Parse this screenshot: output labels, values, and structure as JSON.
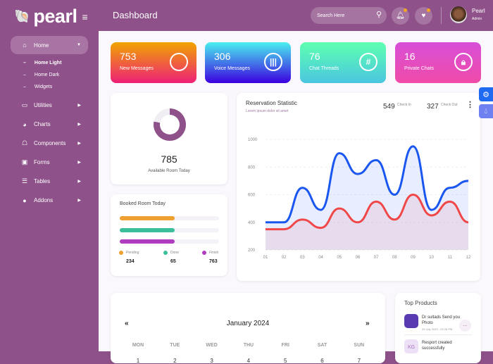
{
  "brand": {
    "name": "pearl"
  },
  "header": {
    "title": "Dashboard",
    "search_placeholder": "Search Here",
    "user_name": "Pearl",
    "user_role": "Admin"
  },
  "sidebar": {
    "items": [
      {
        "label": "Home",
        "icon": "home-icon",
        "active": true,
        "children": [
          "Home Light",
          "Home Dark",
          "Widgets"
        ]
      },
      {
        "label": "Utilities",
        "icon": "calendar-icon"
      },
      {
        "label": "Charts",
        "icon": "chart-icon"
      },
      {
        "label": "Components",
        "icon": "components-icon"
      },
      {
        "label": "Forms",
        "icon": "form-icon"
      },
      {
        "label": "Tables",
        "icon": "table-icon"
      },
      {
        "label": "Addons",
        "icon": "addon-icon"
      }
    ]
  },
  "stats": [
    {
      "value": "753",
      "label": "New Messages",
      "icon": "chat-bubble-icon",
      "gradient": [
        "#f0a500",
        "#ee1f78"
      ]
    },
    {
      "value": "306",
      "label": "Voice Messages",
      "icon": "voice-icon",
      "gradient": [
        "#4af0f0",
        "#3c00e0"
      ]
    },
    {
      "value": "76",
      "label": "Chat Threads",
      "icon": "hashtag-icon",
      "gradient": [
        "#5effb0",
        "#4ac6e0"
      ]
    },
    {
      "value": "16",
      "label": "Private Chats",
      "icon": "lock-chat-icon",
      "gradient": [
        "#d84fd8",
        "#f04ba8"
      ]
    }
  ],
  "room": {
    "value": "785",
    "label": "Available Room Today",
    "percent": 78
  },
  "booked": {
    "title": "Booked Room Today",
    "bars": [
      {
        "label": "Pending",
        "value": "234",
        "color": "#f0a030",
        "fill": 55
      },
      {
        "label": "Done",
        "value": "65",
        "color": "#3bbf9a",
        "fill": 55
      },
      {
        "label": "Finish",
        "value": "763",
        "color": "#b03cc0",
        "fill": 55
      }
    ]
  },
  "reservation": {
    "title": "Reservation Statistic",
    "subtitle": "Lorem ipsum dolor sit amet",
    "check_in_value": "549",
    "check_in_label": "Check In",
    "check_out_value": "327",
    "check_out_label": "Check Out"
  },
  "chart_data": {
    "type": "area",
    "categories": [
      "01",
      "02",
      "03",
      "04",
      "05",
      "06",
      "07",
      "08",
      "09",
      "10",
      "11",
      "12"
    ],
    "yticks": [
      200,
      400,
      600,
      800,
      1000
    ],
    "ylim": [
      200,
      1000
    ],
    "grid": true,
    "series": [
      {
        "color": "#1a56f0",
        "values": [
          400,
          400,
          650,
          490,
          900,
          750,
          850,
          600,
          950,
          490,
          650,
          700
        ]
      },
      {
        "color": "#f04848",
        "values": [
          350,
          350,
          420,
          360,
          500,
          400,
          550,
          420,
          600,
          450,
          550,
          400
        ]
      }
    ]
  },
  "calendar": {
    "month": "January 2024",
    "prev": "«",
    "next": "»",
    "days_of_week": [
      "MON",
      "TUE",
      "WED",
      "THU",
      "FRI",
      "SAT",
      "SUN"
    ],
    "first_row": [
      "1",
      "2",
      "3",
      "4",
      "5",
      "6",
      "7"
    ]
  },
  "top_products": {
    "title": "Top Products",
    "items": [
      {
        "title": "Dr sultads Send you Photo",
        "time": "29 July 2020 - 02:26 PM"
      },
      {
        "initials": "KG",
        "title": "Resport created successfully"
      }
    ]
  }
}
